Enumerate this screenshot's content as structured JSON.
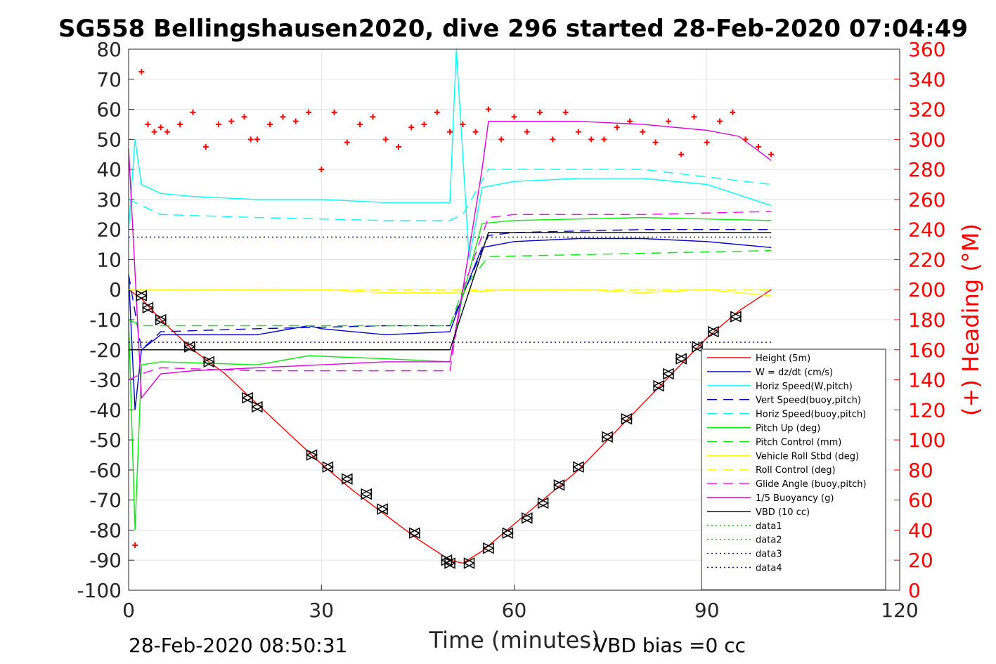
{
  "chart_data": {
    "type": "line",
    "title": "SG558 Bellingshausen2020, dive 296 started 28-Feb-2020 07:04:49",
    "xlabel": "Time (minutes)",
    "ylabel": "",
    "y2label": "(+) Heading (°M)",
    "xlim": [
      0,
      120
    ],
    "ylim": [
      -100,
      80
    ],
    "y2lim": [
      0,
      360
    ],
    "xticks": [
      0,
      30,
      60,
      90,
      120
    ],
    "yticks": [
      -100,
      -90,
      -80,
      -70,
      -60,
      -50,
      -40,
      -30,
      -20,
      -10,
      0,
      10,
      20,
      30,
      40,
      50,
      60,
      70,
      80
    ],
    "y2ticks": [
      0,
      20,
      40,
      60,
      80,
      100,
      120,
      140,
      160,
      180,
      200,
      220,
      240,
      260,
      280,
      300,
      320,
      340,
      360
    ],
    "grid": true,
    "legend_position": "lower-right",
    "footer_left": "28-Feb-2020 08:50:31",
    "footer_right": "VBD bias =0 cc",
    "series": [
      {
        "name": "Height (5m)",
        "color": "#ff0000",
        "style": "solid",
        "x": [
          0,
          2,
          5,
          10,
          15,
          20,
          25,
          30,
          35,
          40,
          45,
          50,
          52,
          55,
          60,
          65,
          70,
          75,
          80,
          85,
          90,
          95,
          100
        ],
        "y": [
          0,
          -3,
          -10,
          -20,
          -28,
          -38,
          -48,
          -58,
          -67,
          -75,
          -83,
          -90,
          -91,
          -87,
          -78,
          -69,
          -60,
          -49,
          -38,
          -27,
          -16,
          -7,
          0
        ]
      },
      {
        "name": "W = dz/dt (cm/s)",
        "color": "#0000cc",
        "style": "solid",
        "x": [
          0,
          1,
          2,
          5,
          10,
          20,
          28,
          30,
          40,
          50,
          52,
          55,
          60,
          70,
          80,
          90,
          100
        ],
        "y": [
          5,
          -40,
          -20,
          -15,
          -15,
          -15,
          -12,
          -13,
          -15,
          -14,
          -2,
          14,
          16,
          17,
          17,
          16,
          14
        ]
      },
      {
        "name": "Horiz Speed(W,pitch)",
        "color": "#00ffff",
        "style": "solid",
        "x": [
          0,
          1,
          2,
          5,
          10,
          20,
          30,
          40,
          50,
          51,
          53,
          55,
          60,
          70,
          80,
          90,
          100
        ],
        "y": [
          20,
          50,
          35,
          32,
          31,
          30,
          30,
          29,
          29,
          80,
          10,
          34,
          36,
          37,
          37,
          35,
          28
        ]
      },
      {
        "name": "Vert Speed(buoy,pitch)",
        "color": "#0000cc",
        "style": "dashed",
        "x": [
          0,
          2,
          5,
          20,
          40,
          50,
          52,
          56,
          60,
          80,
          100
        ],
        "y": [
          5,
          -20,
          -14,
          -13,
          -12,
          -12,
          -2,
          18,
          19,
          20,
          20
        ]
      },
      {
        "name": "Horiz Speed(buoy,pitch)",
        "color": "#00ffff",
        "style": "dashed",
        "x": [
          0,
          2,
          5,
          20,
          40,
          50,
          52,
          56,
          60,
          80,
          100
        ],
        "y": [
          30,
          28,
          25,
          24,
          23,
          23,
          25,
          40,
          40,
          40,
          35
        ]
      },
      {
        "name": "Pitch Up (deg)",
        "color": "#00ee00",
        "style": "solid",
        "x": [
          0,
          1,
          2,
          5,
          20,
          28,
          40,
          50,
          52,
          55,
          60,
          80,
          100
        ],
        "y": [
          -10,
          -80,
          -25,
          -24,
          -25,
          -22,
          -23,
          -24,
          -2,
          22,
          23,
          24,
          23
        ]
      },
      {
        "name": "Pitch Control (mm)",
        "color": "#00ee00",
        "style": "dashed",
        "x": [
          0,
          2,
          50,
          52,
          56,
          100
        ],
        "y": [
          -10,
          -12,
          -12,
          0,
          11,
          13
        ]
      },
      {
        "name": "Vehicle Roll Stbd (deg)",
        "color": "#ffff00",
        "style": "solid",
        "x": [
          0,
          10,
          20,
          30,
          40,
          50,
          60,
          70,
          80,
          90,
          100
        ],
        "y": [
          0,
          0,
          0,
          0,
          -1,
          -1,
          0,
          0,
          -1,
          0,
          -2
        ]
      },
      {
        "name": "Roll Control (deg)",
        "color": "#ffff00",
        "style": "dashed",
        "x": [
          0,
          100
        ],
        "y": [
          0,
          0
        ]
      },
      {
        "name": "Glide Angle (buoy,pitch)",
        "color": "#ff00ff",
        "style": "dashed",
        "x": [
          0,
          2,
          5,
          20,
          40,
          50,
          52,
          56,
          60,
          80,
          100
        ],
        "y": [
          -30,
          -28,
          -26,
          -27,
          -27,
          -27,
          0,
          24,
          25,
          25,
          26
        ]
      },
      {
        "name": "1/5 Buoyancy (g)",
        "color": "#dd00dd",
        "style": "solid",
        "x": [
          0,
          2,
          5,
          10,
          20,
          30,
          40,
          50,
          52,
          55,
          56,
          60,
          70,
          80,
          90,
          95,
          100
        ],
        "y": [
          47,
          -36,
          -28,
          -27,
          -26,
          -25,
          -24,
          -24,
          0,
          40,
          56,
          56,
          56,
          55,
          53,
          51,
          43
        ]
      },
      {
        "name": "VBD (10 cc)",
        "color": "#000000",
        "style": "solid",
        "x": [
          0,
          2,
          50,
          56,
          100
        ],
        "y": [
          -20,
          -20,
          -20,
          19,
          19
        ]
      },
      {
        "name": "data1",
        "color": "#00cc00",
        "style": "dotted",
        "x": [],
        "y": []
      },
      {
        "name": "data2",
        "color": "#00cc00",
        "style": "dotted",
        "x": [],
        "y": []
      },
      {
        "name": "data3",
        "color": "#000099",
        "style": "dotted",
        "x": [
          0,
          100
        ],
        "y": [
          17.5,
          17.5
        ]
      },
      {
        "name": "data4",
        "color": "#000099",
        "style": "dotted",
        "x": [
          0,
          100
        ],
        "y": [
          -17.5,
          -17.5
        ]
      }
    ],
    "heading": {
      "color": "#ff0000",
      "marker": "+",
      "axis": "right",
      "x": [
        1,
        2,
        3,
        4,
        5,
        6,
        8,
        10,
        12,
        14,
        16,
        18,
        19,
        20,
        22,
        24,
        26,
        28,
        30,
        32,
        34,
        36,
        38,
        40,
        42,
        44,
        46,
        48,
        50,
        52,
        54,
        56,
        58,
        60,
        62,
        64,
        66,
        68,
        70,
        72,
        74,
        76,
        78,
        80,
        82,
        84,
        86,
        88,
        90,
        92,
        94,
        96,
        98,
        100
      ],
      "y": [
        30,
        345,
        310,
        305,
        308,
        305,
        310,
        318,
        295,
        310,
        312,
        315,
        300,
        300,
        310,
        315,
        312,
        318,
        280,
        318,
        298,
        310,
        315,
        300,
        295,
        308,
        310,
        318,
        305,
        310,
        305,
        320,
        300,
        315,
        305,
        318,
        300,
        318,
        305,
        300,
        300,
        308,
        312,
        305,
        298,
        312,
        290,
        315,
        298,
        312,
        318,
        300,
        295,
        290
      ]
    },
    "dive_markers": {
      "x": [
        2,
        3,
        5,
        9.5,
        12.5,
        18.5,
        20,
        28.5,
        31,
        34,
        37,
        39.5,
        44.5,
        49.5,
        50,
        53,
        56,
        59,
        62,
        64.5,
        67,
        70,
        74.5,
        77.5,
        82.5,
        84,
        86,
        88.5,
        91,
        94.5
      ],
      "y": [
        -2,
        -6,
        -10,
        -19,
        -24,
        -36,
        -39,
        -55,
        -59,
        -63,
        -68,
        -73,
        -81,
        -90,
        -91,
        -91,
        -86,
        -81,
        -76,
        -71,
        -65,
        -59,
        -49,
        -43,
        -32,
        -28,
        -23,
        -19,
        -14,
        -9
      ]
    }
  }
}
